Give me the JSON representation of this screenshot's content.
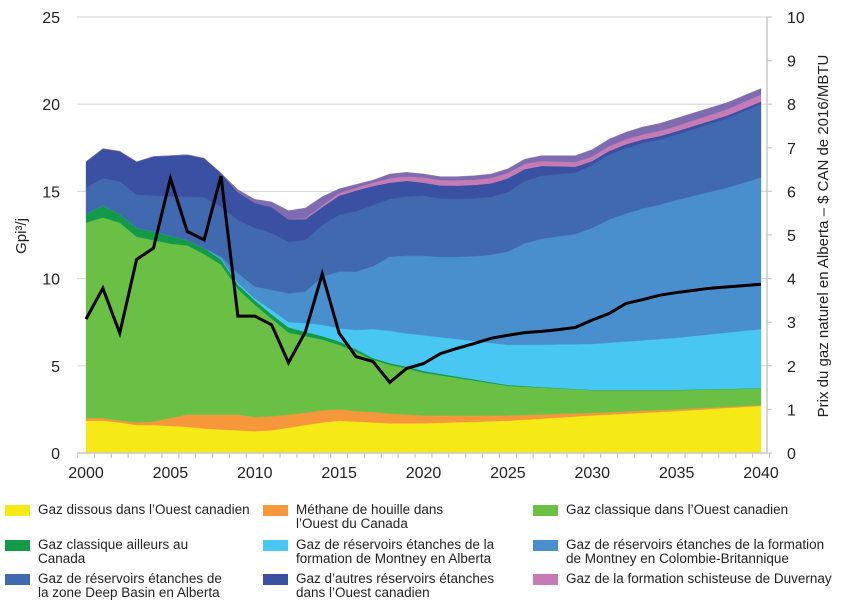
{
  "chart_data": {
    "type": "area",
    "stacked": true,
    "title": "",
    "xlabel": "",
    "ylabel": "Gpi³/j",
    "y2label": "Prix du gaz naturel en Alberta – $ CAN de 2016/MBTU",
    "xlim": [
      2000,
      2040
    ],
    "ylim": [
      0,
      25
    ],
    "y2lim": [
      0,
      10
    ],
    "xticks": [
      2000,
      2005,
      2010,
      2015,
      2020,
      2025,
      2030,
      2035,
      2040
    ],
    "yticks": [
      0,
      5,
      10,
      15,
      20,
      25
    ],
    "y2ticks": [
      0,
      1,
      2,
      3,
      4,
      5,
      6,
      7,
      8,
      9,
      10
    ],
    "grid": "horizontal",
    "legend": "bottom",
    "x": [
      2000,
      2001,
      2002,
      2003,
      2004,
      2005,
      2006,
      2007,
      2008,
      2009,
      2010,
      2011,
      2012,
      2013,
      2014,
      2015,
      2016,
      2017,
      2018,
      2019,
      2020,
      2021,
      2022,
      2023,
      2024,
      2025,
      2026,
      2027,
      2028,
      2029,
      2030,
      2031,
      2032,
      2033,
      2034,
      2035,
      2036,
      2037,
      2038,
      2039,
      2040
    ],
    "series": [
      {
        "name": "Gaz dissous dans l’Ouest canadien",
        "color": "#f5e916",
        "values": [
          1.85,
          1.85,
          1.75,
          1.6,
          1.6,
          1.55,
          1.5,
          1.4,
          1.35,
          1.3,
          1.25,
          1.3,
          1.45,
          1.6,
          1.75,
          1.85,
          1.8,
          1.75,
          1.7,
          1.7,
          1.7,
          1.73,
          1.76,
          1.79,
          1.82,
          1.85,
          1.91,
          1.97,
          2.03,
          2.09,
          2.15,
          2.2,
          2.25,
          2.3,
          2.35,
          2.4,
          2.46,
          2.52,
          2.58,
          2.64,
          2.7
        ]
      },
      {
        "name": "Méthane de houille dans l’Ouest du Canada",
        "color": "#f7973b",
        "values": [
          0.15,
          0.15,
          0.1,
          0.15,
          0.2,
          0.45,
          0.7,
          0.8,
          0.85,
          0.9,
          0.8,
          0.8,
          0.75,
          0.7,
          0.7,
          0.65,
          0.6,
          0.6,
          0.55,
          0.5,
          0.45,
          0.42,
          0.39,
          0.36,
          0.33,
          0.3,
          0.27,
          0.24,
          0.21,
          0.18,
          0.15,
          0.14,
          0.13,
          0.12,
          0.11,
          0.1,
          0.09,
          0.08,
          0.07,
          0.06,
          0.05
        ]
      },
      {
        "name": "Gaz classique dans l’Ouest canadien",
        "color": "#6abf45",
        "values": [
          11.2,
          11.5,
          11.35,
          10.65,
          10.4,
          10.0,
          9.7,
          9.2,
          8.6,
          7.2,
          6.45,
          5.6,
          4.7,
          4.4,
          4.05,
          3.7,
          3.4,
          3.0,
          2.8,
          2.65,
          2.45,
          2.3,
          2.15,
          2.0,
          1.85,
          1.7,
          1.62,
          1.54,
          1.46,
          1.38,
          1.3,
          1.26,
          1.22,
          1.18,
          1.14,
          1.1,
          1.07,
          1.04,
          1.01,
          0.98,
          0.95
        ]
      },
      {
        "name": "Gaz classique ailleurs au Canada",
        "color": "#129a48",
        "values": [
          0.5,
          0.7,
          0.5,
          0.5,
          0.5,
          0.45,
          0.3,
          0.35,
          0.3,
          0.25,
          0.25,
          0.25,
          0.3,
          0.25,
          0.2,
          0.2,
          0.15,
          0.1,
          0.1,
          0.1,
          0.1,
          0.09,
          0.08,
          0.07,
          0.06,
          0.05,
          0.04,
          0.03,
          0.03,
          0.02,
          0.02,
          0.02,
          0.02,
          0.02,
          0.02,
          0.02,
          0.02,
          0.02,
          0.02,
          0.02,
          0.02
        ]
      },
      {
        "name": "Gaz de réservoirs étanches de la formation de Montney en Alberta",
        "color": "#48c7f2",
        "values": [
          0,
          0,
          0,
          0,
          0,
          0,
          0,
          0,
          0.05,
          0.1,
          0.1,
          0.25,
          0.3,
          0.5,
          0.65,
          0.75,
          1.1,
          1.65,
          1.85,
          1.9,
          2.05,
          2.1,
          2.15,
          2.2,
          2.25,
          2.3,
          2.37,
          2.43,
          2.5,
          2.56,
          2.63,
          2.7,
          2.77,
          2.84,
          2.91,
          2.98,
          3.06,
          3.14,
          3.22,
          3.3,
          3.38
        ]
      },
      {
        "name": "Gaz de réservoirs étanches de la formation de Montney en Colombie-Britannique",
        "color": "#4a8fcd",
        "values": [
          0,
          0,
          0,
          0,
          0,
          0,
          0,
          0,
          0.1,
          0.55,
          0.7,
          1.15,
          1.65,
          1.8,
          2.75,
          3.25,
          3.35,
          3.6,
          4.25,
          4.45,
          4.55,
          4.6,
          4.71,
          4.86,
          5.05,
          5.35,
          5.81,
          6.07,
          6.19,
          6.31,
          6.65,
          7.06,
          7.34,
          7.55,
          7.7,
          7.9,
          8.03,
          8.17,
          8.3,
          8.5,
          8.7
        ]
      },
      {
        "name": "Gaz de réservoirs étanches de la zone Deep Basin en Alberta",
        "color": "#4169b0",
        "values": [
          1.5,
          1.55,
          1.85,
          1.9,
          2.05,
          2.25,
          2.5,
          2.9,
          2.85,
          3.05,
          3.35,
          3.25,
          2.95,
          2.95,
          2.95,
          3.25,
          3.45,
          3.5,
          3.3,
          3.4,
          3.45,
          3.34,
          3.32,
          3.31,
          3.31,
          3.4,
          3.57,
          3.6,
          3.56,
          3.52,
          3.6,
          3.71,
          3.75,
          3.76,
          3.74,
          3.75,
          3.83,
          3.9,
          3.98,
          4.09,
          4.2
        ]
      },
      {
        "name": "Gaz d’autres réservoirs étanches dans l’Ouest canadien",
        "color": "#3a50a2",
        "values": [
          1.5,
          1.7,
          1.75,
          1.9,
          2.25,
          2.35,
          2.4,
          2.25,
          1.95,
          1.6,
          1.45,
          1.5,
          1.3,
          1.2,
          1.05,
          1.1,
          1.2,
          1.1,
          0.95,
          0.9,
          0.75,
          0.76,
          0.77,
          0.78,
          0.79,
          0.8,
          0.69,
          0.58,
          0.46,
          0.35,
          0.24,
          0.23,
          0.22,
          0.21,
          0.2,
          0.2,
          0.19,
          0.18,
          0.17,
          0.16,
          0.15
        ]
      },
      {
        "name": "Gaz de la formation schisteuse de Duvernay",
        "color": "#c77bb5",
        "values": [
          0,
          0,
          0,
          0,
          0,
          0,
          0,
          0,
          0,
          0,
          0,
          0,
          0,
          0.05,
          0.1,
          0.15,
          0.15,
          0.2,
          0.25,
          0.25,
          0.3,
          0.3,
          0.3,
          0.3,
          0.3,
          0.3,
          0.29,
          0.28,
          0.27,
          0.27,
          0.26,
          0.27,
          0.28,
          0.29,
          0.29,
          0.3,
          0.32,
          0.34,
          0.36,
          0.38,
          0.4
        ]
      },
      {
        "color": "#7f6bb0",
        "values": [
          0,
          0,
          0,
          0,
          0,
          0,
          0,
          0,
          0,
          0.15,
          0.2,
          0.3,
          0.5,
          0.6,
          0.5,
          0.25,
          0.2,
          0.15,
          0.25,
          0.25,
          0.2,
          0.21,
          0.22,
          0.23,
          0.24,
          0.25,
          0.28,
          0.31,
          0.34,
          0.37,
          0.4,
          0.41,
          0.42,
          0.43,
          0.44,
          0.45,
          0.43,
          0.41,
          0.39,
          0.37,
          0.35
        ]
      }
    ],
    "line_series": {
      "axis": "right",
      "color": "#000000",
      "values": [
        3.07,
        3.78,
        2.75,
        4.44,
        4.7,
        6.3,
        5.08,
        4.89,
        6.35,
        3.14,
        3.14,
        2.94,
        2.07,
        2.78,
        4.11,
        2.75,
        2.21,
        2.1,
        1.62,
        1.94,
        2.05,
        2.28,
        2.4,
        2.51,
        2.63,
        2.7,
        2.76,
        2.79,
        2.83,
        2.88,
        3.05,
        3.2,
        3.43,
        3.52,
        3.62,
        3.68,
        3.73,
        3.78,
        3.81,
        3.84,
        3.87
      ]
    }
  }
}
